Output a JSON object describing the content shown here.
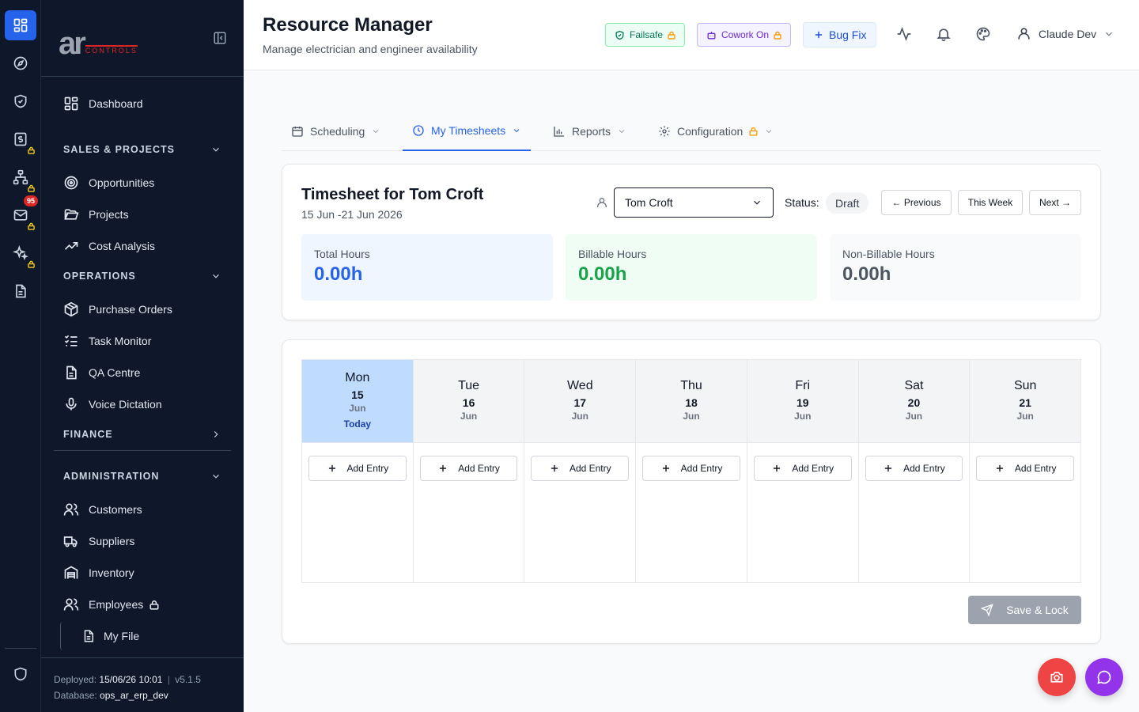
{
  "rail": {
    "items": [
      {
        "icon": "grid-icon",
        "active": true
      },
      {
        "icon": "compass-icon"
      },
      {
        "icon": "shield-check-icon"
      },
      {
        "icon": "dollar-file-icon",
        "locked": true
      },
      {
        "icon": "hierarchy-icon",
        "locked": true
      },
      {
        "icon": "mail-icon",
        "locked": true,
        "badge": "95"
      },
      {
        "icon": "sparkles-icon",
        "locked": true
      },
      {
        "icon": "document-icon"
      },
      {
        "icon": "shield-icon"
      }
    ]
  },
  "sidebar": {
    "logo": {
      "mark": "ar",
      "wordmark": "CONTROLS"
    },
    "dashboard": "Dashboard",
    "sections": {
      "sales": "SALES & PROJECTS",
      "operations": "OPERATIONS",
      "finance": "FINANCE",
      "administration": "ADMINISTRATION"
    },
    "items": {
      "opportunities": "Opportunities",
      "projects": "Projects",
      "cost_analysis": "Cost Analysis",
      "purchase_orders": "Purchase Orders",
      "task_monitor": "Task Monitor",
      "qa_centre": "QA Centre",
      "voice_dictation": "Voice Dictation",
      "customers": "Customers",
      "suppliers": "Suppliers",
      "inventory": "Inventory",
      "employees": "Employees",
      "my_file": "My File"
    },
    "footer": {
      "deployed_label": "Deployed:",
      "deployed_value": "15/06/26 10:01",
      "separator": "|",
      "version": "v5.1.5",
      "database_label": "Database:",
      "database_value": "ops_ar_erp_dev"
    }
  },
  "header": {
    "title": "Resource Manager",
    "subtitle": "Manage electrician and engineer availability",
    "failsafe": "Failsafe",
    "cowork": "Cowork On",
    "bugfix": "Bug Fix",
    "user": "Claude Dev"
  },
  "tabs": {
    "scheduling": "Scheduling",
    "timesheets": "My Timesheets",
    "reports": "Reports",
    "configuration": "Configuration"
  },
  "timesheet": {
    "title": "Timesheet for Tom Croft",
    "range": "15 Jun -21 Jun 2026",
    "employee": "Tom Croft",
    "status_label": "Status:",
    "status": "Draft",
    "prev": "← Previous",
    "this_week": "This Week",
    "next": "Next →",
    "stats": {
      "total_label": "Total Hours",
      "total_value": "0.00h",
      "billable_label": "Billable Hours",
      "billable_value": "0.00h",
      "nonbillable_label": "Non-Billable Hours",
      "nonbillable_value": "0.00h"
    }
  },
  "week": {
    "days": [
      {
        "name": "Mon",
        "num": "15",
        "month": "Jun",
        "today": "Today"
      },
      {
        "name": "Tue",
        "num": "16",
        "month": "Jun"
      },
      {
        "name": "Wed",
        "num": "17",
        "month": "Jun"
      },
      {
        "name": "Thu",
        "num": "18",
        "month": "Jun"
      },
      {
        "name": "Fri",
        "num": "19",
        "month": "Jun"
      },
      {
        "name": "Sat",
        "num": "20",
        "month": "Jun"
      },
      {
        "name": "Sun",
        "num": "21",
        "month": "Jun"
      }
    ],
    "add_label": "Add Entry",
    "save_label": "Save & Lock"
  },
  "colors": {
    "primary": "#2563eb",
    "sidebar_bg": "#0f172a",
    "billable": "#16a34a",
    "lock": "#facc15",
    "today_bg": "#bfdbfe"
  }
}
